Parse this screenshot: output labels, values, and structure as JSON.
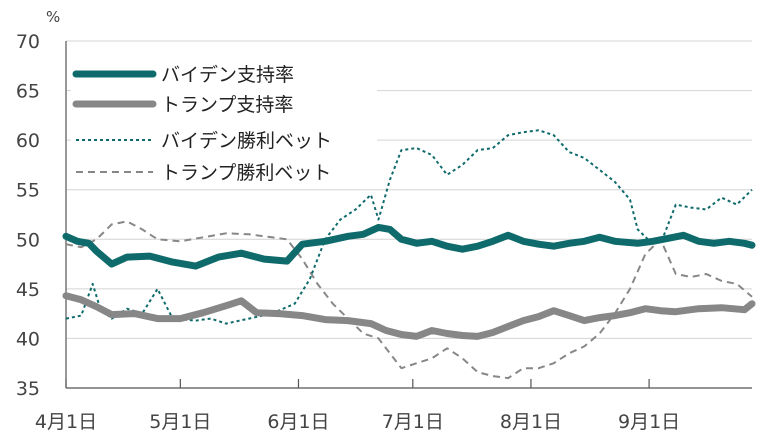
{
  "chart_data": {
    "type": "line",
    "unit": "%",
    "ylim": [
      35,
      70
    ],
    "yticks": [
      35,
      40,
      45,
      50,
      55,
      60,
      65,
      70
    ],
    "x_range_days": [
      0,
      180
    ],
    "xticks": [
      {
        "label": "4月1日",
        "day": 0
      },
      {
        "label": "5月1日",
        "day": 30
      },
      {
        "label": "6月1日",
        "day": 61
      },
      {
        "label": "7月1日",
        "day": 91
      },
      {
        "label": "8月1日",
        "day": 122
      },
      {
        "label": "9月1日",
        "day": 153
      }
    ],
    "grid": "horizontal",
    "legend_position": "top-left",
    "series": [
      {
        "name": "バイデン支持率",
        "color": "#0f6b6b",
        "style": "solid-thick",
        "points": [
          [
            0,
            50.3
          ],
          [
            3,
            49.8
          ],
          [
            6,
            49.6
          ],
          [
            8,
            48.8
          ],
          [
            12,
            47.5
          ],
          [
            16,
            48.2
          ],
          [
            22,
            48.3
          ],
          [
            28,
            47.7
          ],
          [
            34,
            47.3
          ],
          [
            40,
            48.2
          ],
          [
            46,
            48.6
          ],
          [
            52,
            48.0
          ],
          [
            58,
            47.8
          ],
          [
            62,
            49.5
          ],
          [
            68,
            49.8
          ],
          [
            74,
            50.3
          ],
          [
            78,
            50.5
          ],
          [
            82,
            51.2
          ],
          [
            85,
            51.0
          ],
          [
            88,
            50.0
          ],
          [
            92,
            49.6
          ],
          [
            96,
            49.8
          ],
          [
            100,
            49.3
          ],
          [
            104,
            49.0
          ],
          [
            108,
            49.3
          ],
          [
            112,
            49.8
          ],
          [
            116,
            50.4
          ],
          [
            120,
            49.8
          ],
          [
            124,
            49.5
          ],
          [
            128,
            49.3
          ],
          [
            132,
            49.6
          ],
          [
            136,
            49.8
          ],
          [
            140,
            50.2
          ],
          [
            144,
            49.8
          ],
          [
            150,
            49.6
          ],
          [
            154,
            49.8
          ],
          [
            158,
            50.1
          ],
          [
            162,
            50.4
          ],
          [
            166,
            49.8
          ],
          [
            170,
            49.6
          ],
          [
            174,
            49.8
          ],
          [
            178,
            49.6
          ],
          [
            180,
            49.4
          ]
        ]
      },
      {
        "name": "トランプ支持率",
        "color": "#878787",
        "style": "solid-thick",
        "points": [
          [
            0,
            44.3
          ],
          [
            4,
            43.9
          ],
          [
            8,
            43.2
          ],
          [
            12,
            42.4
          ],
          [
            18,
            42.5
          ],
          [
            24,
            42.0
          ],
          [
            30,
            42.0
          ],
          [
            36,
            42.6
          ],
          [
            42,
            43.3
          ],
          [
            46,
            43.8
          ],
          [
            50,
            42.6
          ],
          [
            56,
            42.5
          ],
          [
            62,
            42.3
          ],
          [
            68,
            41.9
          ],
          [
            74,
            41.8
          ],
          [
            80,
            41.5
          ],
          [
            84,
            40.8
          ],
          [
            88,
            40.4
          ],
          [
            92,
            40.2
          ],
          [
            96,
            40.8
          ],
          [
            100,
            40.5
          ],
          [
            104,
            40.3
          ],
          [
            108,
            40.2
          ],
          [
            112,
            40.6
          ],
          [
            116,
            41.2
          ],
          [
            120,
            41.8
          ],
          [
            124,
            42.2
          ],
          [
            128,
            42.8
          ],
          [
            132,
            42.3
          ],
          [
            136,
            41.8
          ],
          [
            140,
            42.1
          ],
          [
            144,
            42.3
          ],
          [
            148,
            42.6
          ],
          [
            152,
            43.0
          ],
          [
            156,
            42.8
          ],
          [
            160,
            42.7
          ],
          [
            166,
            43.0
          ],
          [
            172,
            43.1
          ],
          [
            178,
            42.9
          ],
          [
            180,
            43.5
          ]
        ]
      },
      {
        "name": "バイデン勝利ベット",
        "color": "#0f6b6b",
        "style": "dotted",
        "points": [
          [
            0,
            42.0
          ],
          [
            4,
            42.3
          ],
          [
            7,
            45.5
          ],
          [
            9,
            43.0
          ],
          [
            12,
            42.0
          ],
          [
            16,
            43.0
          ],
          [
            20,
            42.5
          ],
          [
            24,
            45.0
          ],
          [
            28,
            42.0
          ],
          [
            34,
            41.8
          ],
          [
            38,
            42.0
          ],
          [
            42,
            41.5
          ],
          [
            48,
            42.0
          ],
          [
            54,
            42.5
          ],
          [
            60,
            43.5
          ],
          [
            64,
            46.0
          ],
          [
            68,
            50.0
          ],
          [
            72,
            52.0
          ],
          [
            76,
            53.0
          ],
          [
            80,
            54.5
          ],
          [
            82,
            52.0
          ],
          [
            85,
            56.0
          ],
          [
            88,
            59.0
          ],
          [
            92,
            59.2
          ],
          [
            96,
            58.5
          ],
          [
            100,
            56.5
          ],
          [
            104,
            57.5
          ],
          [
            108,
            59.0
          ],
          [
            112,
            59.2
          ],
          [
            116,
            60.5
          ],
          [
            120,
            60.8
          ],
          [
            124,
            61.0
          ],
          [
            128,
            60.5
          ],
          [
            132,
            58.8
          ],
          [
            136,
            58.2
          ],
          [
            140,
            57.0
          ],
          [
            144,
            55.8
          ],
          [
            148,
            54.0
          ],
          [
            150,
            51.0
          ],
          [
            154,
            49.5
          ],
          [
            157,
            50.5
          ],
          [
            160,
            53.5
          ],
          [
            164,
            53.2
          ],
          [
            168,
            53.0
          ],
          [
            172,
            54.2
          ],
          [
            176,
            53.5
          ],
          [
            180,
            55.0
          ]
        ]
      },
      {
        "name": "トランプ勝利ベット",
        "color": "#878787",
        "style": "dashed",
        "points": [
          [
            0,
            49.5
          ],
          [
            4,
            49.2
          ],
          [
            8,
            50.0
          ],
          [
            12,
            51.5
          ],
          [
            16,
            51.8
          ],
          [
            20,
            51.0
          ],
          [
            24,
            50.0
          ],
          [
            30,
            49.8
          ],
          [
            36,
            50.2
          ],
          [
            42,
            50.6
          ],
          [
            48,
            50.5
          ],
          [
            54,
            50.2
          ],
          [
            58,
            50.0
          ],
          [
            62,
            48.0
          ],
          [
            66,
            45.5
          ],
          [
            70,
            43.5
          ],
          [
            74,
            42.0
          ],
          [
            78,
            40.5
          ],
          [
            82,
            40.0
          ],
          [
            85,
            38.5
          ],
          [
            88,
            37.0
          ],
          [
            92,
            37.5
          ],
          [
            96,
            38.0
          ],
          [
            100,
            39.0
          ],
          [
            104,
            38.0
          ],
          [
            108,
            36.6
          ],
          [
            112,
            36.2
          ],
          [
            116,
            36.0
          ],
          [
            120,
            37.0
          ],
          [
            124,
            37.0
          ],
          [
            128,
            37.5
          ],
          [
            132,
            38.5
          ],
          [
            136,
            39.2
          ],
          [
            140,
            40.5
          ],
          [
            144,
            42.5
          ],
          [
            148,
            45.0
          ],
          [
            152,
            48.5
          ],
          [
            156,
            50.0
          ],
          [
            160,
            46.5
          ],
          [
            164,
            46.2
          ],
          [
            168,
            46.5
          ],
          [
            172,
            45.8
          ],
          [
            176,
            45.5
          ],
          [
            180,
            44.2
          ]
        ]
      }
    ]
  }
}
